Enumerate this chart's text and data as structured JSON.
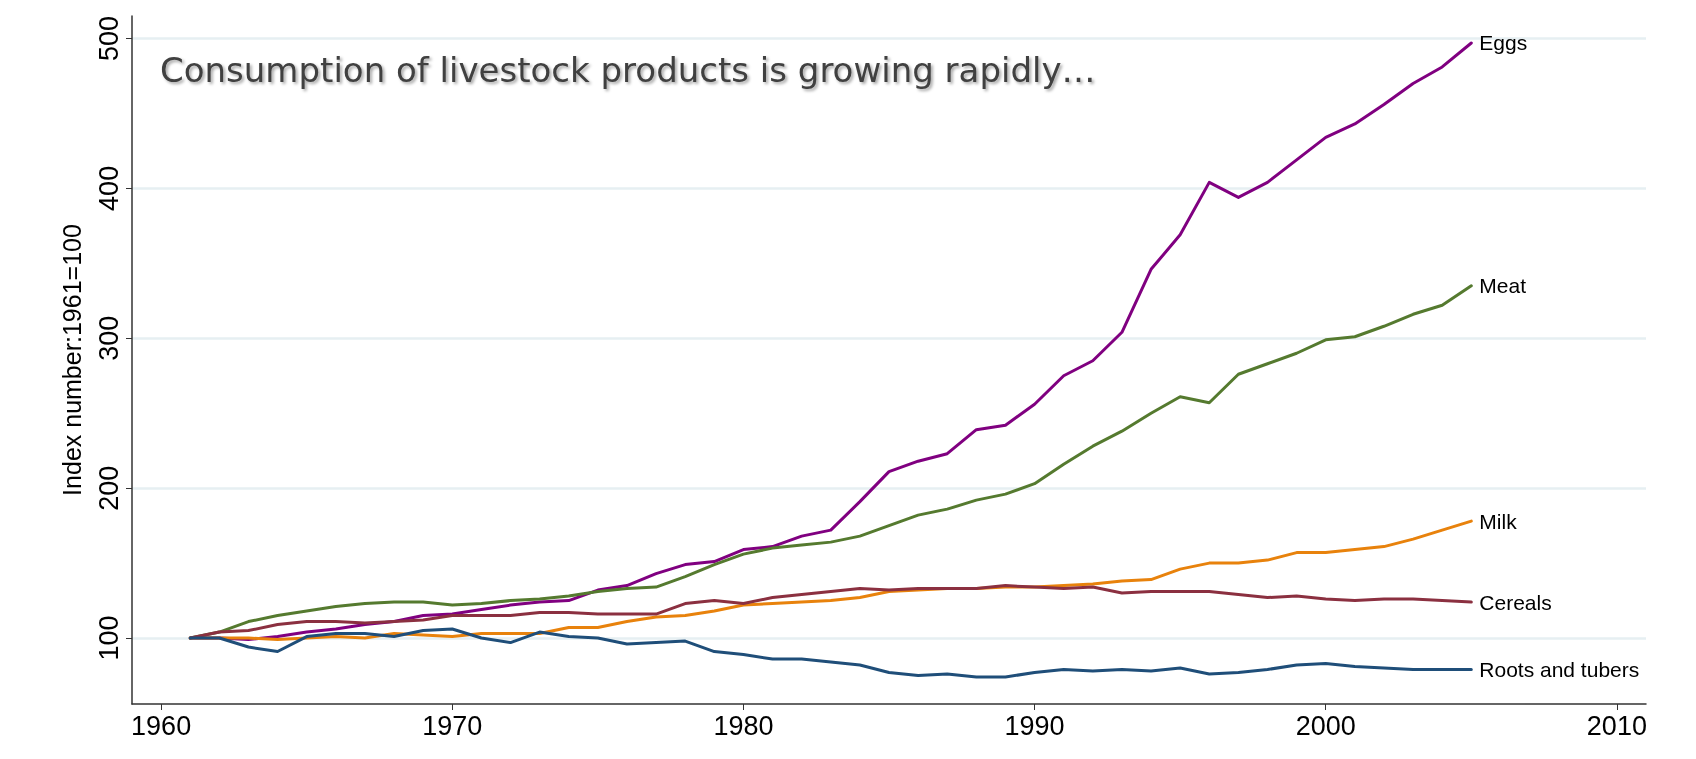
{
  "chart_data": {
    "type": "line",
    "title": "Consumption of livestock products is growing rapidly…",
    "ylabel": "Index number:1961=100",
    "x": [
      1961,
      1962,
      1963,
      1964,
      1965,
      1966,
      1967,
      1968,
      1969,
      1970,
      1971,
      1972,
      1973,
      1974,
      1975,
      1976,
      1977,
      1978,
      1979,
      1980,
      1981,
      1982,
      1983,
      1984,
      1985,
      1986,
      1987,
      1988,
      1989,
      1990,
      1991,
      1992,
      1993,
      1994,
      1995,
      1996,
      1997,
      1998,
      1999,
      2000,
      2001,
      2002,
      2003,
      2004,
      2005
    ],
    "series": [
      {
        "name": "Eggs",
        "color": "#800080",
        "values": [
          100,
          100,
          99,
          101,
          104,
          106,
          109,
          111,
          115,
          116,
          119,
          122,
          124,
          125,
          132,
          135,
          143,
          149,
          151,
          159,
          161,
          168,
          172,
          191,
          211,
          218,
          223,
          239,
          242,
          256,
          275,
          285,
          304,
          346,
          369,
          404,
          394,
          404,
          419,
          434,
          443,
          456,
          470,
          481,
          497
        ]
      },
      {
        "name": "Meat",
        "color": "#557a2f",
        "values": [
          100,
          104,
          111,
          115,
          118,
          121,
          123,
          124,
          124,
          122,
          123,
          125,
          126,
          128,
          131,
          133,
          134,
          141,
          149,
          156,
          160,
          162,
          164,
          168,
          175,
          182,
          186,
          192,
          196,
          203,
          216,
          228,
          238,
          250,
          261,
          257,
          276,
          283,
          290,
          299,
          301,
          308,
          316,
          322,
          335
        ]
      },
      {
        "name": "Milk",
        "color": "#e8820c",
        "values": [
          100,
          100,
          100,
          99,
          100,
          101,
          100,
          103,
          102,
          101,
          103,
          103,
          103,
          107,
          107,
          111,
          114,
          115,
          118,
          122,
          123,
          124,
          125,
          127,
          131,
          132,
          133,
          133,
          134,
          134,
          135,
          136,
          138,
          139,
          146,
          150,
          150,
          152,
          157,
          157,
          159,
          161,
          166,
          172,
          178
        ]
      },
      {
        "name": "Cereals",
        "color": "#8b3040",
        "values": [
          100,
          104,
          105,
          109,
          111,
          111,
          110,
          111,
          112,
          115,
          115,
          115,
          117,
          117,
          116,
          116,
          116,
          123,
          125,
          123,
          127,
          129,
          131,
          133,
          132,
          133,
          133,
          133,
          135,
          134,
          133,
          134,
          130,
          131,
          131,
          131,
          129,
          127,
          128,
          126,
          125,
          126,
          126,
          125,
          124
        ]
      },
      {
        "name": "Roots and tubers",
        "color": "#1f4e79",
        "values": [
          100,
          100,
          94,
          91,
          101,
          103,
          103,
          101,
          105,
          106,
          100,
          97,
          104,
          101,
          100,
          96,
          97,
          98,
          91,
          89,
          86,
          86,
          84,
          82,
          77,
          75,
          76,
          74,
          74,
          77,
          79,
          78,
          79,
          78,
          80,
          76,
          77,
          79,
          82,
          83,
          81,
          80,
          79,
          79,
          79
        ]
      }
    ],
    "xlim": [
      1959,
      2011
    ],
    "xticks": [
      1960,
      1970,
      1980,
      1990,
      2000,
      2010
    ],
    "ylim": [
      56,
      515
    ],
    "yticks": [
      100,
      200,
      300,
      400,
      500
    ],
    "grid": "y",
    "legend": false,
    "marker": "none",
    "line_style": "solid"
  }
}
